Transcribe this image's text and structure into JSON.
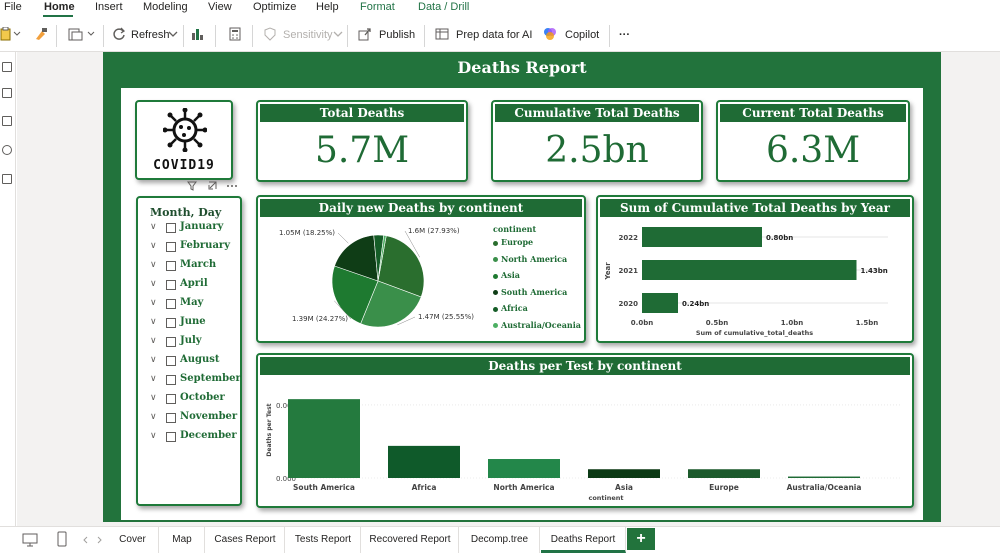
{
  "ribbon": {
    "menu": [
      "File",
      "Home",
      "Insert",
      "Modeling",
      "View",
      "Optimize",
      "Help",
      "Format",
      "Data / Drill"
    ],
    "toolbar": {
      "refresh": "Refresh",
      "sensitivity": "Sensitivity",
      "publish": "Publish",
      "prep_data": "Prep data for AI",
      "copilot": "Copilot",
      "more": "···"
    }
  },
  "report": {
    "title": "Deaths Report",
    "logo_text": "COVID19",
    "kpis": [
      {
        "title": "Total Deaths",
        "value": "5.7M"
      },
      {
        "title": "Cumulative Total Deaths",
        "value": "2.5bn"
      },
      {
        "title": "Current Total Deaths",
        "value": "6.3M"
      }
    ],
    "slicer": {
      "title": "Month, Day",
      "items": [
        "January",
        "February",
        "March",
        "April",
        "May",
        "June",
        "July",
        "August",
        "September",
        "October",
        "November",
        "December"
      ]
    }
  },
  "chart_data": [
    {
      "type": "pie",
      "title": "Daily new Deaths by continent",
      "legend_title": "continent",
      "legend_position": "right",
      "slices": [
        {
          "name": "Europe",
          "value": 1.6,
          "label": "1.6M (27.93%)",
          "color": "#2a6e2e"
        },
        {
          "name": "North America",
          "value": 1.47,
          "label": "1.47M (25.55%)",
          "color": "#3a8f4a"
        },
        {
          "name": "Asia",
          "value": 1.39,
          "label": "1.39M (24.27%)",
          "color": "#1e7a30"
        },
        {
          "name": "South America",
          "value": 1.05,
          "label": "1.05M (18.25%)",
          "color": "#0f3d16"
        },
        {
          "name": "Africa",
          "value": 0.2,
          "label": "",
          "color": "#155d27"
        },
        {
          "name": "Australia/Oceania",
          "value": 0.05,
          "label": "",
          "color": "#4caf63"
        }
      ]
    },
    {
      "type": "bar",
      "orientation": "horizontal",
      "title": "Sum of Cumulative Total Deaths by Year",
      "xlabel": "Sum of cumulative_total_deaths",
      "ylabel": "Year",
      "categories": [
        "2022",
        "2021",
        "2020"
      ],
      "values": [
        0.8,
        1.43,
        0.24
      ],
      "value_labels": [
        "0.80bn",
        "1.43bn",
        "0.24bn"
      ],
      "xticks": [
        "0.0bn",
        "0.5bn",
        "1.0bn",
        "1.5bn"
      ],
      "xlim": [
        0,
        1.5
      ],
      "color": "#1f6b35"
    },
    {
      "type": "bar",
      "title": "Deaths per Test by continent",
      "xlabel": "continent",
      "ylabel": "Deaths per Test",
      "categories": [
        "South America",
        "Africa",
        "North America",
        "Asia",
        "Europe",
        "Australia/Oceania"
      ],
      "values": [
        0.0054,
        0.0022,
        0.0013,
        0.0006,
        0.0006,
        0.0001
      ],
      "colors": [
        "#247a3e",
        "#0f5a2a",
        "#23874a",
        "#0c3a15",
        "#1c5a2c",
        "#1f6b35"
      ],
      "yticks": [
        "0.005",
        "0.000"
      ],
      "ylim": [
        0,
        0.0063
      ]
    }
  ],
  "tabs": [
    "Cover",
    "Map",
    "Cases Report",
    "Tests Report",
    "Recovered Report",
    "Decomp.tree",
    "Deaths Report"
  ],
  "add_tab": "+"
}
